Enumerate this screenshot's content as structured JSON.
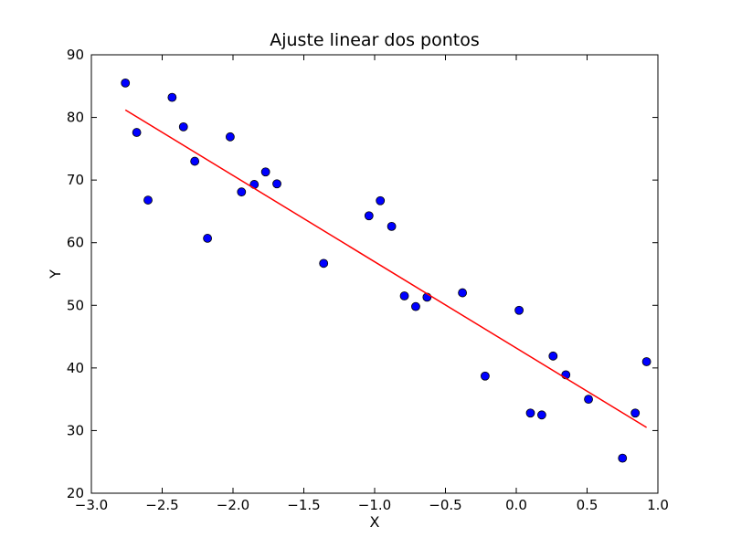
{
  "chart_data": {
    "type": "scatter",
    "title": "Ajuste linear dos pontos",
    "xlabel": "X",
    "ylabel": "Y",
    "xlim": [
      -3.0,
      1.0
    ],
    "ylim": [
      20,
      90
    ],
    "x_ticks": [
      -3.0,
      -2.5,
      -2.0,
      -1.5,
      -1.0,
      -0.5,
      0.0,
      0.5,
      1.0
    ],
    "x_tick_labels": [
      "−3.0",
      "−2.5",
      "−2.0",
      "−1.5",
      "−1.0",
      "−0.5",
      "0.0",
      "0.5",
      "1.0"
    ],
    "y_ticks": [
      20,
      30,
      40,
      50,
      60,
      70,
      80,
      90
    ],
    "y_tick_labels": [
      "20",
      "30",
      "40",
      "50",
      "60",
      "70",
      "80",
      "90"
    ],
    "grid": false,
    "series": [
      {
        "kind": "scatter",
        "color": "#0000ff",
        "points": [
          {
            "x": -2.76,
            "y": 85.5
          },
          {
            "x": -2.68,
            "y": 77.6
          },
          {
            "x": -2.6,
            "y": 66.8
          },
          {
            "x": -2.43,
            "y": 83.2
          },
          {
            "x": -2.35,
            "y": 78.5
          },
          {
            "x": -2.27,
            "y": 73.0
          },
          {
            "x": -2.18,
            "y": 60.7
          },
          {
            "x": -2.02,
            "y": 76.9
          },
          {
            "x": -1.94,
            "y": 68.1
          },
          {
            "x": -1.85,
            "y": 69.3
          },
          {
            "x": -1.77,
            "y": 71.3
          },
          {
            "x": -1.69,
            "y": 69.4
          },
          {
            "x": -1.36,
            "y": 56.7
          },
          {
            "x": -1.04,
            "y": 64.3
          },
          {
            "x": -0.96,
            "y": 66.7
          },
          {
            "x": -0.88,
            "y": 62.6
          },
          {
            "x": -0.79,
            "y": 51.5
          },
          {
            "x": -0.71,
            "y": 49.8
          },
          {
            "x": -0.63,
            "y": 51.3
          },
          {
            "x": -0.38,
            "y": 52.0
          },
          {
            "x": -0.22,
            "y": 38.7
          },
          {
            "x": 0.02,
            "y": 49.2
          },
          {
            "x": 0.1,
            "y": 32.8
          },
          {
            "x": 0.18,
            "y": 32.5
          },
          {
            "x": 0.26,
            "y": 41.9
          },
          {
            "x": 0.35,
            "y": 38.9
          },
          {
            "x": 0.51,
            "y": 35.0
          },
          {
            "x": 0.75,
            "y": 25.6
          },
          {
            "x": 0.84,
            "y": 32.8
          },
          {
            "x": 0.92,
            "y": 41.0
          }
        ]
      },
      {
        "kind": "line",
        "color": "#ff0000",
        "x": [
          -2.76,
          0.92
        ],
        "y": [
          81.2,
          30.5
        ]
      }
    ]
  }
}
